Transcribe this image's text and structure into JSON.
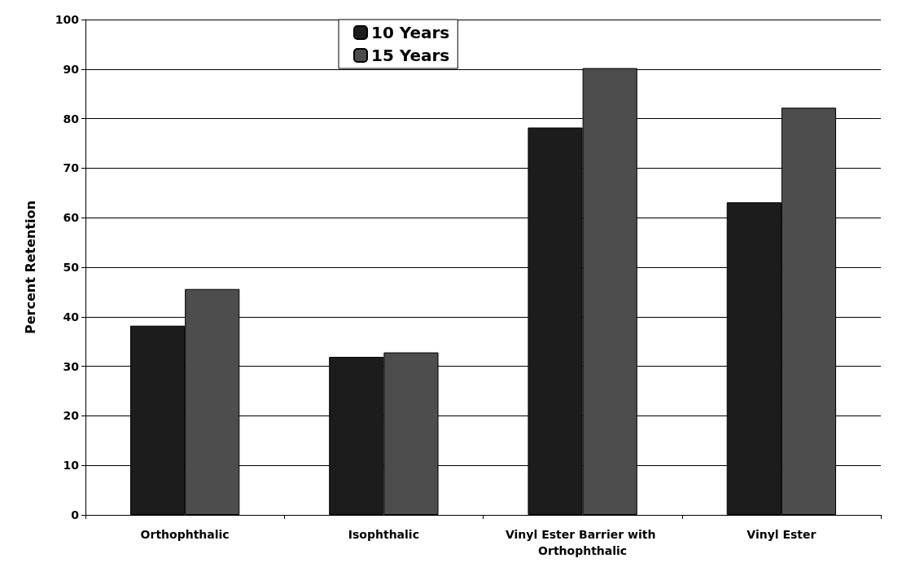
{
  "chart_data": {
    "type": "bar",
    "ylabel": "Percent Retention",
    "categories": [
      "Orthophthalic",
      "Isophthalic",
      "Vinyl Ester Barrier with Orthophthalic",
      "Vinyl Ester"
    ],
    "series": [
      {
        "name": "10 Years",
        "color": "#1c1c1c",
        "values": [
          38.2,
          31.9,
          78.2,
          63.1
        ]
      },
      {
        "name": "15 Years",
        "color": "#4d4d4d",
        "values": [
          45.6,
          32.8,
          90.2,
          82.2
        ]
      }
    ],
    "ylim": [
      0,
      100
    ],
    "yticks": [
      0,
      10,
      20,
      30,
      40,
      50,
      60,
      70,
      80,
      90,
      100
    ],
    "grid": "y",
    "legend": "top"
  }
}
